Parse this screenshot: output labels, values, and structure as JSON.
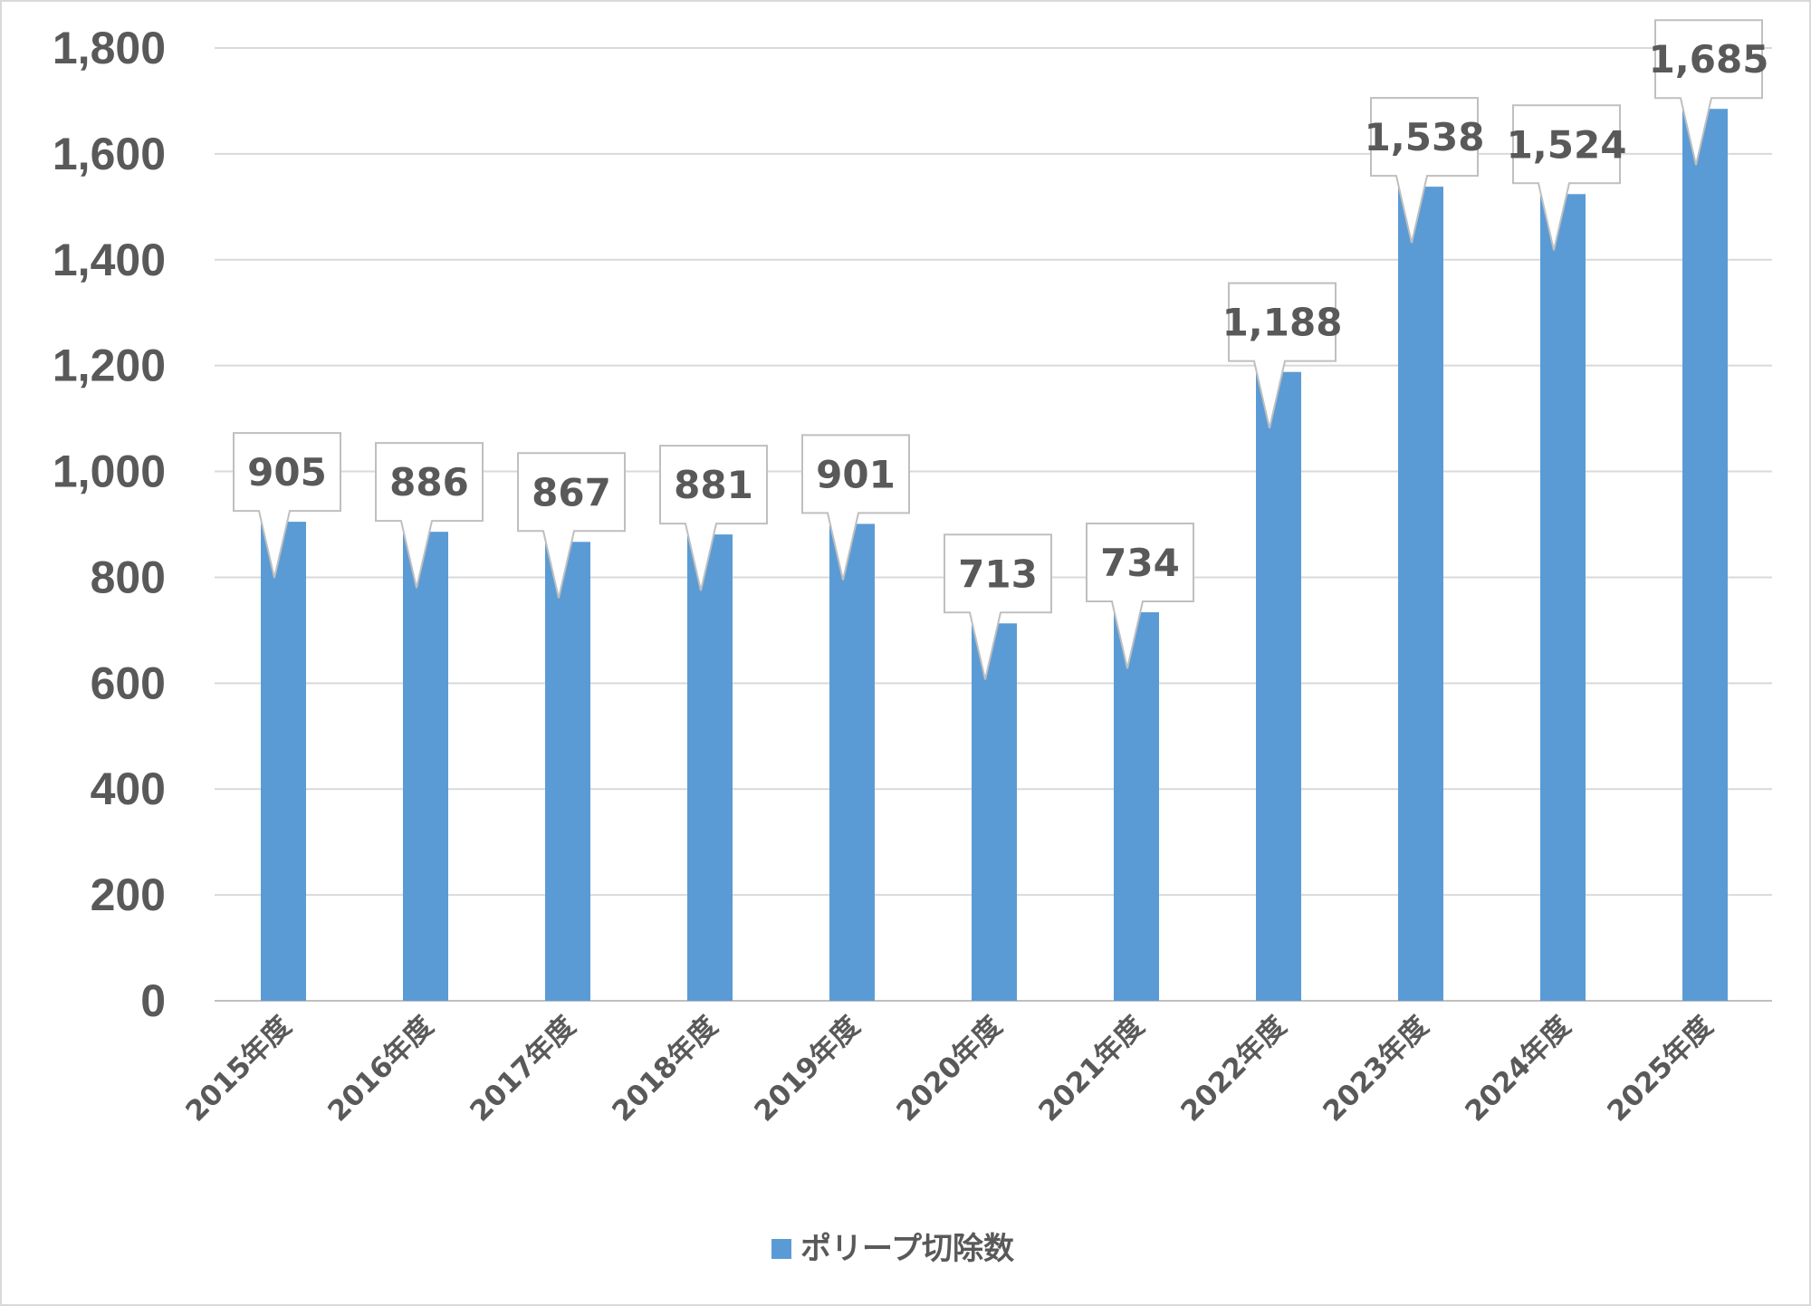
{
  "chart_data": {
    "type": "bar",
    "categories": [
      "2015年度",
      "2016年度",
      "2017年度",
      "2018年度",
      "2019年度",
      "2020年度",
      "2021年度",
      "2022年度",
      "2023年度",
      "2024年度",
      "2025年度"
    ],
    "series": [
      {
        "name": "ポリープ切除数",
        "values": [
          905,
          886,
          867,
          881,
          901,
          713,
          734,
          1188,
          1538,
          1524,
          1685
        ],
        "labels": [
          "905",
          "886",
          "867",
          "881",
          "901",
          "713",
          "734",
          "1,188",
          "1,538",
          "1,524",
          "1,685"
        ],
        "color": "#5b9bd5"
      }
    ],
    "ylim": [
      0,
      1800
    ],
    "yticks": [
      0,
      200,
      400,
      600,
      800,
      1000,
      1200,
      1400,
      1600,
      1800
    ],
    "ytick_labels": [
      "0",
      "200",
      "400",
      "600",
      "800",
      "1,000",
      "1,200",
      "1,400",
      "1,600",
      "1,800"
    ],
    "grid": true,
    "legend_position": "bottom",
    "data_labels": "callout"
  }
}
